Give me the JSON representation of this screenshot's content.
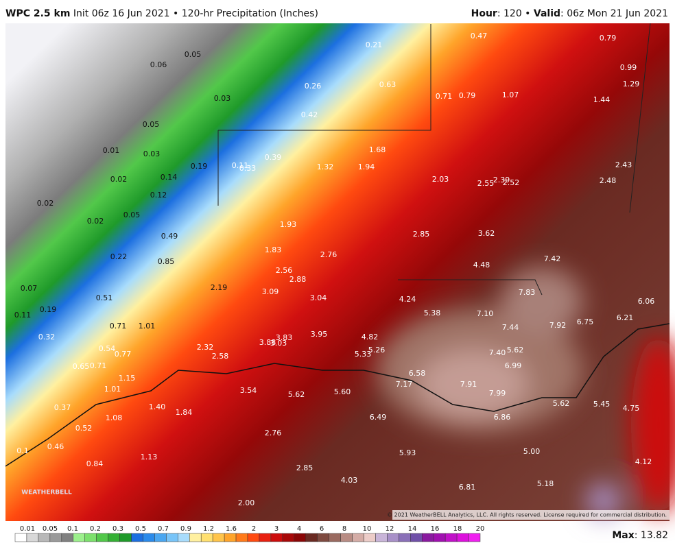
{
  "header": {
    "model": "WPC 2.5 km",
    "description": "Init 06z 16 Jun 2021 • 120-hr Precipitation (Inches)",
    "hour_label": "Hour",
    "hour_value": ": 120 • ",
    "valid_label": "Valid",
    "valid_value": ": 06z Mon 21 Jun 2021"
  },
  "map_labels": [
    "0.47",
    "0.79",
    "0.21",
    "0.05",
    "0.06",
    "0.99",
    "0.63",
    "0.26",
    "1.29",
    "0.71",
    "0.79",
    "1.07",
    "0.03",
    "1.44",
    "0.42",
    "0.05",
    "1.68",
    "0.01",
    "0.03",
    "0.39",
    "0.19",
    "0.11",
    "0.33",
    "1.32",
    "1.94",
    "2.43",
    "0.02",
    "0.14",
    "2.03",
    "2.55",
    "2.39",
    "2.52",
    "2.48",
    "0.12",
    "0.02",
    "0.05",
    "0.02",
    "1.93",
    "0.49",
    "2.85",
    "3.62",
    "1.83",
    "2.76",
    "0.22",
    "0.85",
    "7.42",
    "4.48",
    "2.56",
    "2.88",
    "0.07",
    "2.19",
    "3.09",
    "7.83",
    "0.51",
    "3.04",
    "4.24",
    "6.06",
    "0.19",
    "5.38",
    "7.10",
    "0.11",
    "6.21",
    "7.92",
    "6.75",
    "0.71",
    "1.01",
    "7.44",
    "0.32",
    "3.95",
    "4.82",
    "3.83",
    "3.88",
    "3.03",
    "2.32",
    "0.54",
    "5.26",
    "7.40",
    "5.62",
    "5.33",
    "0.77",
    "2.58",
    "0.65",
    "0.71",
    "6.99",
    "6.58",
    "1.15",
    "7.17",
    "7.91",
    "1.01",
    "3.54",
    "5.62",
    "5.60",
    "7.99",
    "1.40",
    "5.62",
    "5.45",
    "0.37",
    "4.75",
    "1.84",
    "1.08",
    "6.49",
    "6.86",
    "0.52",
    "2.76",
    "0.46",
    "0.1",
    "5.00",
    "5.93",
    "1.13",
    "4.12",
    "0.84",
    "2.85",
    "4.03",
    "5.18",
    "6.81",
    "2.00"
  ],
  "copyright": "© 2021 WeatherBELL Analytics, LLC. All rights reserved. License required for commercial distribution.",
  "logo": "WEATHERBELL",
  "legend": {
    "labels": [
      "0.01",
      "0.05",
      "0.1",
      "0.2",
      "0.3",
      "0.5",
      "0.7",
      "0.9",
      "1.2",
      "1.6",
      "2",
      "3",
      "4",
      "6",
      "8",
      "10",
      "12",
      "14",
      "16",
      "18",
      "20"
    ],
    "colors": [
      "#ffffff",
      "#d8d8d8",
      "#b8b8b8",
      "#9a9a9a",
      "#808080",
      "#9cf08c",
      "#7ce06c",
      "#52c84a",
      "#34b034",
      "#1f9a2a",
      "#1c6fe0",
      "#2a8aea",
      "#4aa6f0",
      "#78c4f8",
      "#a8dcfc",
      "#fff0a0",
      "#ffe070",
      "#ffc44a",
      "#ffa42a",
      "#ff7a1a",
      "#ff4a10",
      "#e82010",
      "#cc0c0c",
      "#a80808",
      "#8a0606",
      "#6a2a22",
      "#7e4a40",
      "#9a6a60",
      "#b88c84",
      "#d4aca6",
      "#ecccc8",
      "#c8b4d8",
      "#a890c8",
      "#8a70b8",
      "#7050a8",
      "#8a1aa0",
      "#a010b0",
      "#c010c8",
      "#dc10dc",
      "#f020f0"
    ]
  },
  "max_label": "Max",
  "max_value": ": 13.82"
}
